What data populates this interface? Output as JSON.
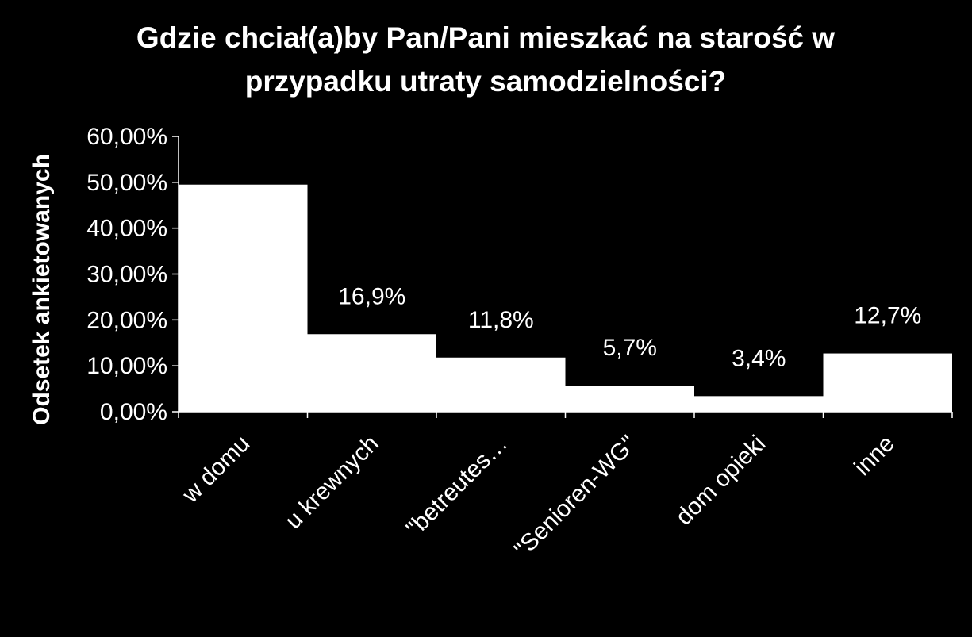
{
  "chart_data": {
    "type": "bar",
    "title_lines": [
      "Gdzie chciał(a)by Pan/Pani mieszkać na starość w",
      "przypadku utraty samodzielności?"
    ],
    "xlabel": "",
    "ylabel": "Odsetek ankietowanych",
    "categories": [
      "w domu",
      "u krewnych",
      "\"betreutes…",
      "\"Senioren-WG\"",
      "dom opieki",
      "inne"
    ],
    "values": [
      49.5,
      16.9,
      11.8,
      5.7,
      3.4,
      12.7
    ],
    "data_labels": [
      "",
      "16,9%",
      "11,8%",
      "5,7%",
      "3,4%",
      "12,7%"
    ],
    "ylim": [
      0,
      60
    ],
    "y_ticks": [
      0,
      10,
      20,
      30,
      40,
      50,
      60
    ],
    "y_tick_labels": [
      "0,00%",
      "10,00%",
      "20,00%",
      "30,00%",
      "40,00%",
      "50,00%",
      "60,00%"
    ],
    "grid": false,
    "legend": "none",
    "colors": {
      "background": "#000000",
      "bar": "#ffffff",
      "axis": "#ffffff",
      "text": "#ffffff"
    }
  }
}
